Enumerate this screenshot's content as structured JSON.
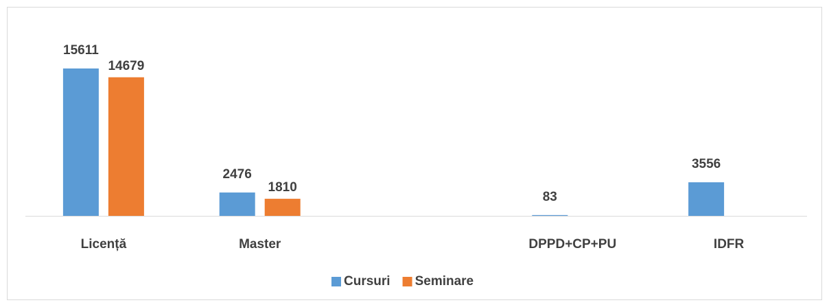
{
  "chart_data": {
    "type": "bar",
    "categories": [
      "Licență",
      "Master",
      null,
      "DPPD+CP+PU",
      "IDFR"
    ],
    "series": [
      {
        "name": "Cursuri",
        "color": "#5b9bd5",
        "values": [
          15611,
          2476,
          null,
          83,
          3556
        ]
      },
      {
        "name": "Seminare",
        "color": "#ed7d31",
        "values": [
          14679,
          1810,
          null,
          null,
          null
        ]
      }
    ],
    "ylim": [
      0,
      18000
    ],
    "legend": "bottom"
  }
}
